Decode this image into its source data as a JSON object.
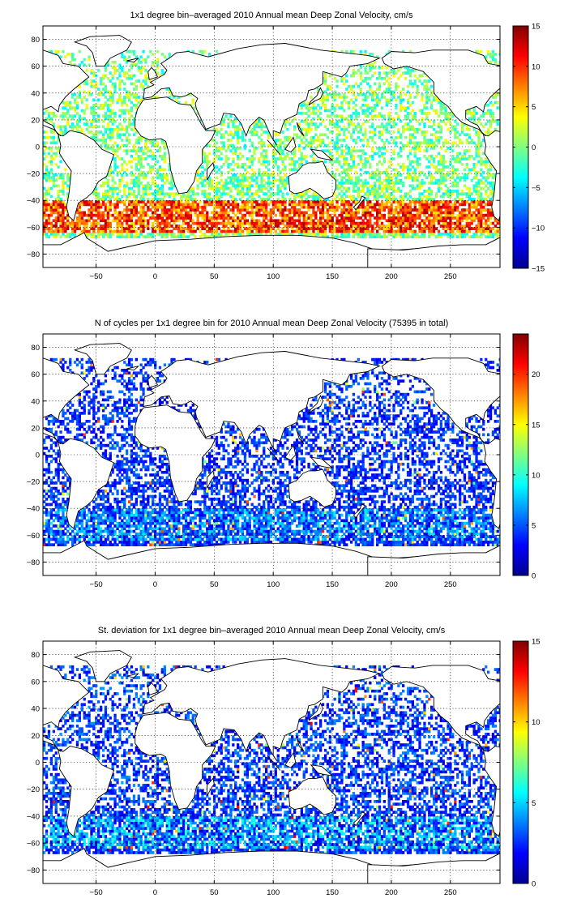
{
  "chart_data": [
    {
      "type": "heatmap",
      "title": "1x1 degree bin–averaged 2010 Annual mean Deep Zonal Velocity, cm/s",
      "xlim": [
        -95,
        292
      ],
      "ylim": [
        -90,
        90
      ],
      "x_ticks": [
        -50,
        0,
        50,
        100,
        150,
        200,
        250
      ],
      "x_tick_labels": [
        "−50",
        "0",
        "50",
        "100",
        "150",
        "200",
        "250"
      ],
      "y_ticks": [
        80,
        60,
        40,
        20,
        0,
        -20,
        -40,
        -60,
        -80
      ],
      "y_tick_labels": [
        "80",
        "60",
        "40",
        "20",
        "0",
        "−20",
        "−40",
        "−60",
        "−80"
      ],
      "grid": true,
      "colorbar": {
        "colormap": "jet",
        "range": [
          -15,
          15
        ],
        "ticks": [
          15,
          10,
          5,
          0,
          -5,
          -10,
          -15
        ],
        "tick_labels": [
          "15",
          "10",
          "5",
          "0",
          "−5",
          "−10",
          "−15"
        ]
      }
    },
    {
      "type": "heatmap",
      "title": "N of cycles per 1x1 degree bin for 2010 Annual mean Deep Zonal Velocity (75395 in total)",
      "xlim": [
        -95,
        292
      ],
      "ylim": [
        -90,
        90
      ],
      "x_ticks": [
        -50,
        0,
        50,
        100,
        150,
        200,
        250
      ],
      "x_tick_labels": [
        "−50",
        "0",
        "50",
        "100",
        "150",
        "200",
        "250"
      ],
      "y_ticks": [
        80,
        60,
        40,
        20,
        0,
        -20,
        -40,
        -60,
        -80
      ],
      "y_tick_labels": [
        "80",
        "60",
        "40",
        "20",
        "0",
        "−20",
        "−40",
        "−60",
        "−80"
      ],
      "grid": true,
      "colorbar": {
        "colormap": "jet",
        "range": [
          0,
          24
        ],
        "ticks": [
          20,
          15,
          10,
          5,
          0
        ],
        "tick_labels": [
          "20",
          "15",
          "10",
          "5",
          "0"
        ]
      }
    },
    {
      "type": "heatmap",
      "title": "St. deviation for 1x1 degree bin–averaged 2010 Annual mean Deep Zonal Velocity, cm/s",
      "xlim": [
        -95,
        292
      ],
      "ylim": [
        -90,
        90
      ],
      "x_ticks": [
        -50,
        0,
        50,
        100,
        150,
        200,
        250
      ],
      "x_tick_labels": [
        "−50",
        "0",
        "50",
        "100",
        "150",
        "200",
        "250"
      ],
      "y_ticks": [
        80,
        60,
        40,
        20,
        0,
        -20,
        -40,
        -60,
        -80
      ],
      "y_tick_labels": [
        "80",
        "60",
        "40",
        "20",
        "0",
        "−20",
        "−40",
        "−60",
        "−80"
      ],
      "grid": true,
      "colorbar": {
        "colormap": "jet",
        "range": [
          0,
          15
        ],
        "ticks": [
          15,
          10,
          5,
          0
        ],
        "tick_labels": [
          "15",
          "10",
          "5",
          "0"
        ]
      }
    }
  ]
}
